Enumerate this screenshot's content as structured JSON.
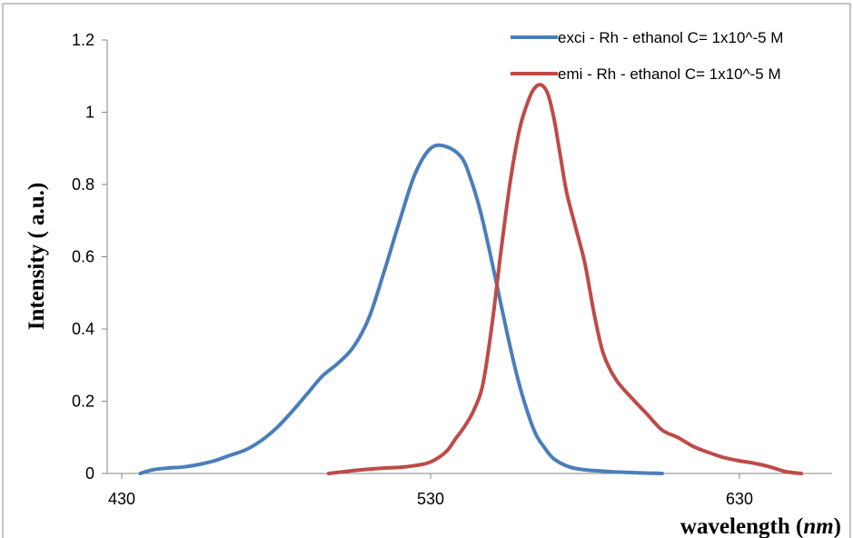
{
  "chart_data": {
    "type": "line",
    "xlabel": "wavelength (nm)",
    "xlabel_parts": {
      "prefix": "wavelength (",
      "unit": "nm",
      "suffix": ")"
    },
    "ylabel": "Intensity ( a.u.)",
    "xlim": [
      430,
      660
    ],
    "ylim": [
      0,
      1.2
    ],
    "x_ticks": [
      430,
      530,
      630
    ],
    "y_ticks": [
      0,
      0.2,
      0.4,
      0.6,
      0.8,
      1,
      1.2
    ],
    "grid": false,
    "legend_position": "top-right",
    "series": [
      {
        "name": "exci - Rh - ethanol C= 1x10^-5 M",
        "color": "#4a7ebb",
        "x": [
          436,
          440,
          445,
          450,
          455,
          460,
          465,
          470,
          475,
          480,
          485,
          490,
          495,
          500,
          505,
          510,
          515,
          520,
          525,
          530,
          535,
          540,
          543,
          546,
          549,
          552,
          555,
          558,
          561,
          564,
          567,
          570,
          575,
          580,
          585,
          590,
          597,
          600,
          605
        ],
        "values": [
          0.0,
          0.01,
          0.015,
          0.018,
          0.025,
          0.035,
          0.05,
          0.065,
          0.09,
          0.125,
          0.17,
          0.22,
          0.27,
          0.305,
          0.35,
          0.43,
          0.56,
          0.7,
          0.83,
          0.9,
          0.905,
          0.875,
          0.815,
          0.73,
          0.62,
          0.5,
          0.38,
          0.27,
          0.18,
          0.11,
          0.07,
          0.04,
          0.018,
          0.01,
          0.007,
          0.004,
          0.002,
          0.001,
          0.0
        ]
      },
      {
        "name": "emi - Rh - ethanol C= 1x10^-5 M",
        "color": "#be4b48",
        "x": [
          497,
          505,
          510,
          515,
          520,
          525,
          530,
          535,
          538,
          541,
          544,
          547,
          550,
          553,
          556,
          559,
          562,
          564,
          566,
          568,
          570,
          572,
          574,
          577,
          580,
          583,
          586,
          590,
          595,
          600,
          605,
          610,
          615,
          620,
          625,
          630,
          635,
          640,
          645,
          650
        ],
        "values": [
          0.0,
          0.008,
          0.012,
          0.015,
          0.017,
          0.022,
          0.032,
          0.06,
          0.095,
          0.13,
          0.175,
          0.25,
          0.42,
          0.63,
          0.82,
          0.96,
          1.04,
          1.07,
          1.075,
          1.05,
          0.98,
          0.88,
          0.78,
          0.68,
          0.58,
          0.44,
          0.33,
          0.26,
          0.21,
          0.165,
          0.12,
          0.1,
          0.075,
          0.058,
          0.044,
          0.035,
          0.028,
          0.018,
          0.005,
          0.0
        ]
      }
    ]
  }
}
